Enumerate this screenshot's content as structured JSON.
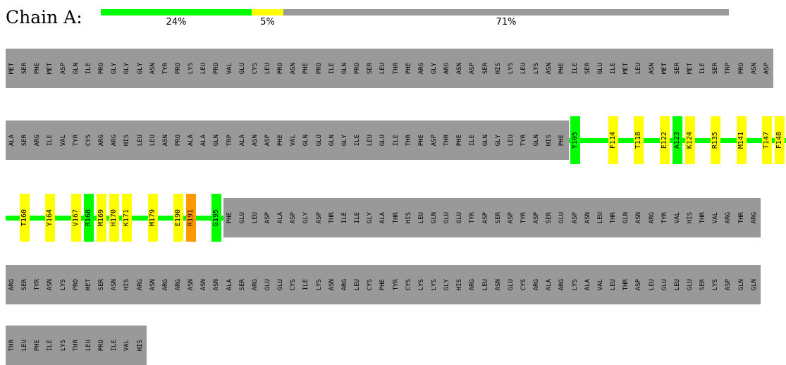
{
  "chain": {
    "label": "Chain A:",
    "summary": [
      {
        "pct_label": "24%",
        "fraction": 0.24,
        "color": "#00ff00"
      },
      {
        "pct_label": "5%",
        "fraction": 0.05,
        "color": "#ffff00"
      },
      {
        "pct_label": "71%",
        "fraction": 0.71,
        "color": "#999999"
      }
    ]
  },
  "colors": {
    "none": "#999999",
    "green": "#00ff00",
    "yellow": "#ffff00",
    "orange": "#ff9900"
  },
  "rows": [
    {
      "segments": [
        {
          "type": "block",
          "residues": [
            "MET",
            "SER",
            "PHE",
            "MET",
            "ASP",
            "GLN",
            "ILE",
            "PRO",
            "GLY",
            "GLY",
            "GLY",
            "ASN",
            "TYR",
            "PRO",
            "LYS",
            "LEU",
            "PRO",
            "VAL",
            "GLU",
            "CYS",
            "LEU",
            "PRO",
            "ASN",
            "PHE",
            "PRO",
            "ILE",
            "GLN",
            "PRO",
            "SER",
            "LEU",
            "THR",
            "PHE",
            "ARG",
            "GLY",
            "ARG",
            "ASN",
            "ASP",
            "SER",
            "HIS",
            "LYS",
            "LEU",
            "LYS",
            "ASN",
            "PHE",
            "ILE",
            "SER",
            "GLU",
            "ILE",
            "MET",
            "LEU",
            "ASN",
            "MET",
            "SER",
            "MET",
            "ILE",
            "SER",
            "TRP",
            "PRO",
            "ASN",
            "ASP"
          ]
        }
      ]
    },
    {
      "segments": [
        {
          "type": "block",
          "residues": [
            "ALA",
            "SER",
            "ARG",
            "ILE",
            "VAL",
            "TYR",
            "CYS",
            "ARG",
            "ARG",
            "HIS",
            "LEU",
            "LEU",
            "ASN",
            "PRO",
            "ALA",
            "ALA",
            "GLN",
            "TRP",
            "ALA",
            "ASN",
            "ASP",
            "PHE",
            "VAL",
            "GLN",
            "GLU",
            "GLN",
            "GLY",
            "ILE",
            "LEU",
            "GLU",
            "ILE",
            "THR",
            "PHE",
            "ASP",
            "THR",
            "PHE",
            "ILE",
            "GLN",
            "GLY",
            "LEU",
            "TYR",
            "GLN",
            "HIS",
            "PHE"
          ]
        },
        {
          "type": "line",
          "residues": [
            {
              "label": "Y105",
              "hl": "green"
            },
            {
              "label": "",
              "hl": "green"
            },
            {
              "label": "",
              "hl": "green"
            },
            {
              "label": "F114",
              "hl": "yellow"
            },
            {
              "label": "",
              "hl": "green"
            },
            {
              "label": "T118",
              "hl": "yellow"
            },
            {
              "label": "",
              "hl": "green"
            },
            {
              "label": "E122",
              "hl": "yellow"
            },
            {
              "label": "A123",
              "hl": "green"
            },
            {
              "label": "K124",
              "hl": "yellow"
            },
            {
              "label": "",
              "hl": "green"
            },
            {
              "label": "R135",
              "hl": "yellow"
            },
            {
              "label": "",
              "hl": "green"
            },
            {
              "label": "M141",
              "hl": "yellow"
            },
            {
              "label": "",
              "hl": "green"
            },
            {
              "label": "T147",
              "hl": "yellow"
            },
            {
              "label": "F148",
              "hl": "yellow"
            }
          ]
        }
      ]
    },
    {
      "segments": [
        {
          "type": "line",
          "residues": [
            {
              "label": "",
              "hl": "green"
            },
            {
              "label": "T160",
              "hl": "yellow"
            },
            {
              "label": "",
              "hl": "green"
            },
            {
              "label": "Y164",
              "hl": "yellow"
            },
            {
              "label": "",
              "hl": "green"
            },
            {
              "label": "V167",
              "hl": "yellow"
            },
            {
              "label": "R168",
              "hl": "green"
            },
            {
              "label": "M169",
              "hl": "yellow"
            },
            {
              "label": "H170",
              "hl": "yellow"
            },
            {
              "label": "K171",
              "hl": "yellow"
            },
            {
              "label": "",
              "hl": "green"
            },
            {
              "label": "M179",
              "hl": "yellow"
            },
            {
              "label": "",
              "hl": "green"
            },
            {
              "label": "E190",
              "hl": "yellow"
            },
            {
              "label": "R191",
              "hl": "orange"
            },
            {
              "label": "",
              "hl": "green"
            },
            {
              "label": "G195",
              "hl": "green"
            }
          ]
        },
        {
          "type": "block",
          "residues": [
            "PHE",
            "GLU",
            "LEU",
            "ASP",
            "ALA",
            "ASP",
            "GLY",
            "ASP",
            "THR",
            "ILE",
            "ILE",
            "GLY",
            "ALA",
            "THR",
            "HIS",
            "LEU",
            "GLN",
            "GLU",
            "GLU",
            "TYR",
            "ASP",
            "SER",
            "ASP",
            "TYR",
            "ASP",
            "SER",
            "GLU",
            "ASP",
            "ASN",
            "LEU",
            "THR",
            "GLN",
            "ASN",
            "ARG",
            "TYR",
            "VAL",
            "HIS",
            "THR",
            "VAL",
            "ARG",
            "THR",
            "ARG"
          ]
        }
      ]
    },
    {
      "segments": [
        {
          "type": "block",
          "residues": [
            "ARG",
            "SER",
            "TYR",
            "ASN",
            "LYS",
            "PRO",
            "MET",
            "SER",
            "ASN",
            "HIS",
            "ARG",
            "ASN",
            "ARG",
            "ARG",
            "ASN",
            "ASN",
            "ASN",
            "ALA",
            "SER",
            "ARG",
            "GLU",
            "GLU",
            "CYS",
            "ILE",
            "LYS",
            "ASN",
            "ARG",
            "LEU",
            "CYS",
            "PHE",
            "TYR",
            "CYS",
            "LYS",
            "LYS",
            "GLY",
            "HIS",
            "ARG",
            "LEU",
            "ASN",
            "GLU",
            "CYS",
            "ARG",
            "ALA",
            "ARG",
            "LYS",
            "ALA",
            "VAL",
            "LEU",
            "THR",
            "ASP",
            "LEU",
            "GLU",
            "LEU",
            "GLU",
            "SER",
            "LYS",
            "ASP",
            "GLN",
            "GLN"
          ]
        }
      ]
    },
    {
      "segments": [
        {
          "type": "block",
          "residues": [
            "THR",
            "LEU",
            "PHE",
            "ILE",
            "LYS",
            "THR",
            "LEU",
            "PRO",
            "ILE",
            "VAL",
            "HIS"
          ]
        }
      ]
    }
  ]
}
